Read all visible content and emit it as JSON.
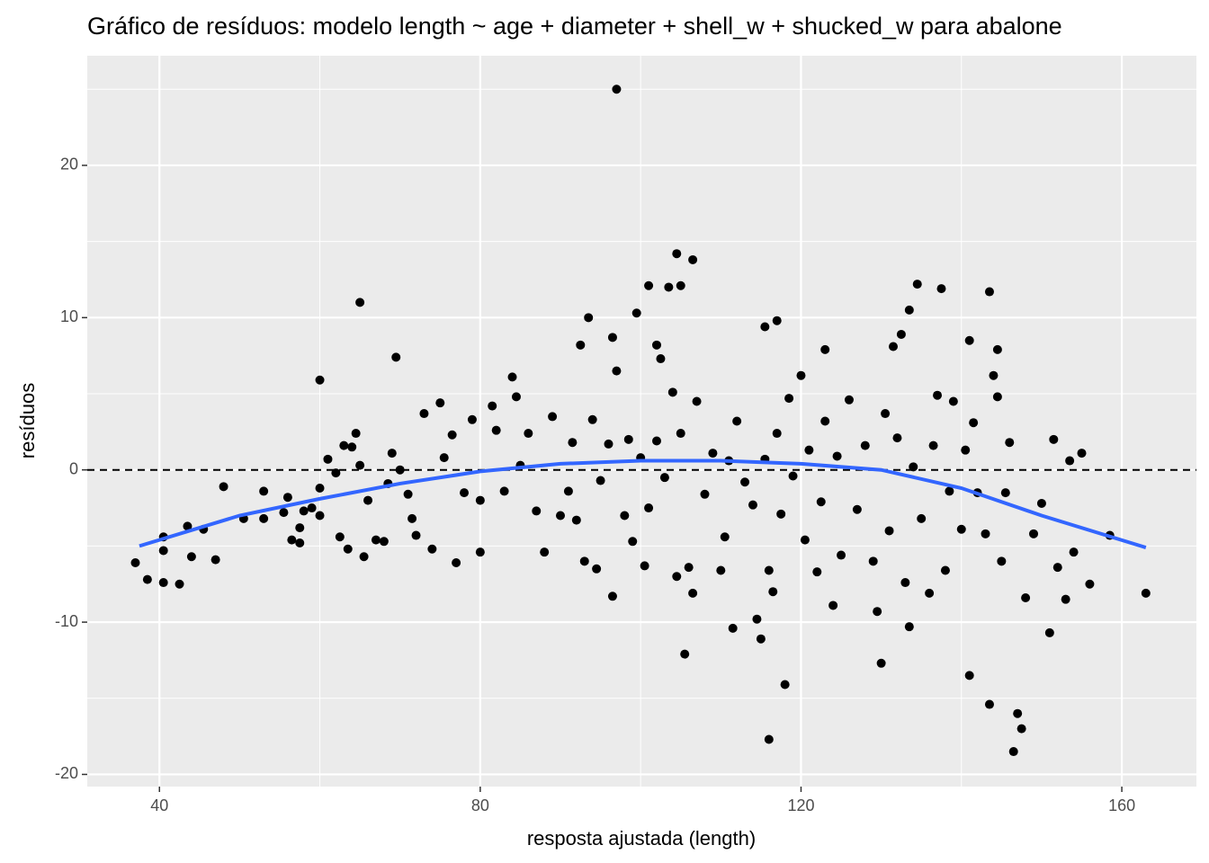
{
  "chart_data": {
    "type": "scatter",
    "title": "Gráfico de resíduos: modelo length ~ age + diameter + shell_w + shucked_w para abalone",
    "x_label": "resposta ajustada (length)",
    "y_label": "resíduos",
    "xlim": [
      31,
      169.3
    ],
    "ylim": [
      -20.8,
      27.2
    ],
    "xticks": [
      40,
      80,
      120,
      160
    ],
    "yticks": [
      -20,
      -10,
      0,
      10,
      20
    ],
    "x_minor_ticks": [
      60,
      100,
      140
    ],
    "y_minor_ticks": [
      -15,
      -5,
      5,
      15,
      25
    ],
    "grid": true,
    "color": "#000000",
    "hline": 0,
    "smooth": {
      "color": "#3366FF",
      "x": [
        37.5,
        50,
        60,
        70,
        80,
        90,
        100,
        110,
        120,
        130,
        140,
        150,
        163
      ],
      "values": [
        -5,
        -3,
        -1.9,
        -0.9,
        -0.1,
        0.4,
        0.6,
        0.6,
        0.4,
        0,
        -1.2,
        -3,
        -5.1
      ]
    },
    "x": [
      97,
      104.5,
      106.5,
      101,
      103.5,
      105,
      134.5,
      137.5,
      143.5,
      65,
      99.5,
      93.5,
      133.5,
      117,
      115.5,
      69.5,
      60,
      141,
      144.5,
      132.5,
      131.5,
      123,
      96.5,
      92.5,
      102,
      37,
      38.5,
      40.5,
      42.5,
      40.5,
      40.5,
      44,
      43.5,
      47,
      45.5,
      48,
      50.5,
      53,
      53,
      55.5,
      56.5,
      57.5,
      57.5,
      56,
      58,
      59,
      60,
      60,
      61,
      62,
      63,
      64.5,
      64,
      65,
      62.5,
      63.5,
      65.5,
      66,
      67,
      68,
      68.5,
      69,
      70,
      71,
      71.5,
      72,
      73,
      74,
      75,
      75.5,
      76.5,
      77,
      78,
      79,
      80,
      80,
      81.5,
      82,
      83,
      84,
      84.5,
      85,
      86,
      87,
      88,
      89,
      90,
      91,
      91.5,
      92,
      93,
      94,
      94.5,
      95,
      96,
      96.5,
      97,
      98,
      98.5,
      99,
      100,
      100.5,
      101,
      102,
      102.5,
      103,
      104,
      104.5,
      105,
      105.5,
      106,
      106.5,
      107,
      108,
      109,
      110,
      110.5,
      111,
      111.5,
      112,
      113,
      114,
      114.5,
      115,
      115.5,
      116,
      116,
      116.5,
      117,
      117.5,
      118,
      118.5,
      119,
      120,
      120.5,
      121,
      122,
      122.5,
      123,
      124,
      124.5,
      125,
      126,
      127,
      128,
      129,
      129.5,
      130,
      130.5,
      131,
      132,
      133,
      133.5,
      134,
      135,
      136,
      136.5,
      137,
      138,
      138.5,
      139,
      140,
      140.5,
      141,
      141.5,
      142,
      143,
      143.5,
      144,
      144.5,
      145,
      145.5,
      146,
      146.5,
      147,
      147.5,
      148,
      149,
      150,
      151,
      151.5,
      152,
      153,
      153.5,
      154,
      155,
      156,
      158.5,
      163
    ],
    "values": [
      25,
      14.2,
      13.8,
      12.1,
      12,
      12.1,
      12.2,
      11.9,
      11.7,
      11,
      10.3,
      10,
      10.5,
      9.8,
      9.4,
      7.4,
      5.9,
      8.5,
      7.9,
      8.9,
      8.1,
      7.9,
      8.7,
      8.2,
      8.2,
      -6.1,
      -7.2,
      -7.4,
      -7.5,
      -5.3,
      -4.4,
      -5.7,
      -3.7,
      -5.9,
      -3.9,
      -1.1,
      -3.2,
      -1.4,
      -3.2,
      -2.8,
      -4.6,
      -4.8,
      -3.8,
      -1.8,
      -2.7,
      -2.5,
      -3,
      -1.2,
      0.7,
      -0.2,
      1.6,
      2.4,
      1.5,
      0.3,
      -4.4,
      -5.2,
      -5.7,
      -2,
      -4.6,
      -4.7,
      -0.9,
      1.1,
      0,
      -1.6,
      -3.2,
      -4.3,
      3.7,
      -5.2,
      4.4,
      0.8,
      2.3,
      -6.1,
      -1.5,
      3.3,
      -2,
      -5.4,
      4.2,
      2.6,
      -1.4,
      6.1,
      4.8,
      0.3,
      2.4,
      -2.7,
      -5.4,
      3.5,
      -3,
      -1.4,
      1.8,
      -3.3,
      -6,
      3.3,
      -6.5,
      -0.7,
      1.7,
      -8.3,
      6.5,
      -3,
      2,
      -4.7,
      0.8,
      -6.3,
      -2.5,
      1.9,
      7.3,
      -0.5,
      5.1,
      -7,
      2.4,
      -12.1,
      -6.4,
      -8.1,
      4.5,
      -1.6,
      1.1,
      -6.6,
      -4.4,
      0.6,
      -10.4,
      3.2,
      -0.8,
      -2.3,
      -9.8,
      -11.1,
      0.7,
      -6.6,
      -17.7,
      -8,
      2.4,
      -2.9,
      -14.1,
      4.7,
      -0.4,
      6.2,
      -4.6,
      1.3,
      -6.7,
      -2.1,
      3.2,
      -8.9,
      0.9,
      -5.6,
      4.6,
      -2.6,
      1.6,
      -6,
      -9.3,
      -12.7,
      3.7,
      -4,
      2.1,
      -7.4,
      -10.3,
      0.2,
      -3.2,
      -8.1,
      1.6,
      4.9,
      -6.6,
      -1.4,
      4.5,
      -3.9,
      1.3,
      -13.5,
      3.1,
      -1.5,
      -4.2,
      -15.4,
      6.2,
      4.8,
      -6,
      -1.5,
      1.8,
      -18.5,
      -16,
      -17,
      -8.4,
      -4.2,
      -2.2,
      -10.7,
      2,
      -6.4,
      -8.5,
      0.6,
      -5.4,
      1.1,
      -7.5,
      -4.3,
      -8.1
    ]
  }
}
